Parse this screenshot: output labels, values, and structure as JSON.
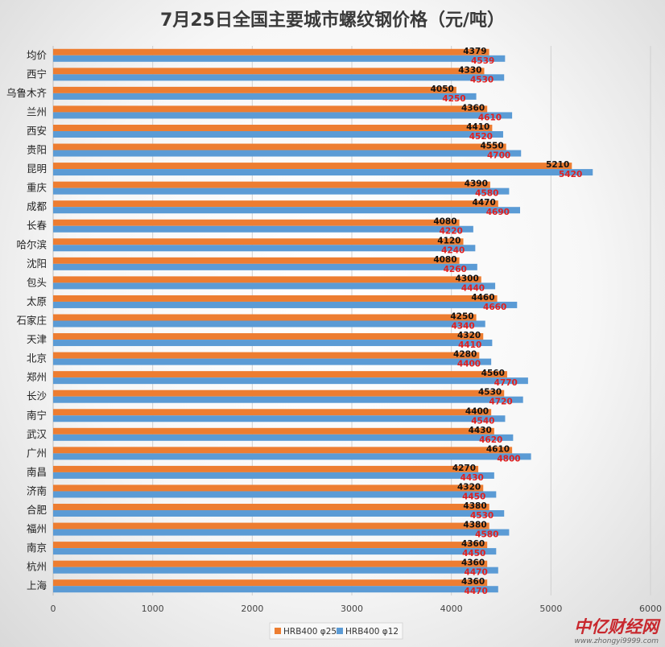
{
  "chart_data": {
    "type": "bar",
    "orientation": "horizontal",
    "title": "7月25日全国主要城市螺纹钢价格（元/吨）",
    "categories": [
      "均价",
      "西宁",
      "乌鲁木齐",
      "兰州",
      "西安",
      "贵阳",
      "昆明",
      "重庆",
      "成都",
      "长春",
      "哈尔滨",
      "沈阳",
      "包头",
      "太原",
      "石家庄",
      "天津",
      "北京",
      "郑州",
      "长沙",
      "南宁",
      "武汉",
      "广州",
      "南昌",
      "济南",
      "合肥",
      "福州",
      "南京",
      "杭州",
      "上海"
    ],
    "series": [
      {
        "name": "HRB400 φ25",
        "color": "#ed7d31",
        "values": [
          4379,
          4330,
          4050,
          4360,
          4410,
          4550,
          5210,
          4390,
          4470,
          4080,
          4120,
          4080,
          4300,
          4460,
          4250,
          4320,
          4280,
          4560,
          4530,
          4400,
          4430,
          4610,
          4270,
          4320,
          4380,
          4380,
          4360,
          4360,
          4360
        ]
      },
      {
        "name": "HRB400 φ12",
        "color": "#5b9bd5",
        "values": [
          4539,
          4530,
          4250,
          4610,
          4520,
          4700,
          5420,
          4580,
          4690,
          4220,
          4240,
          4260,
          4440,
          4660,
          4340,
          4410,
          4400,
          4770,
          4720,
          4540,
          4620,
          4800,
          4430,
          4450,
          4530,
          4580,
          4450,
          4470,
          4470
        ]
      }
    ],
    "xlim": [
      0,
      6000
    ],
    "ticks": [
      "0",
      "1000",
      "2000",
      "3000",
      "4000",
      "5000",
      "6000"
    ],
    "grid": true,
    "legend": "bottom",
    "data_label_colors": {
      "series_1": "#111111",
      "series_2": "#e02020"
    }
  },
  "watermark": {
    "brand": "中亿财经网",
    "url": "www.zhongyi9999.com"
  }
}
